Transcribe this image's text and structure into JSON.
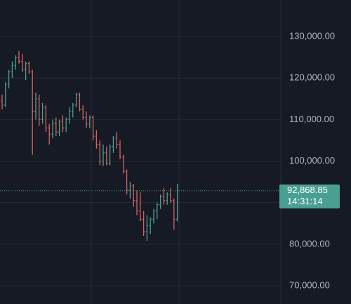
{
  "chart_data": {
    "type": "ohlc",
    "categories": [
      null,
      null,
      null,
      null,
      null,
      null,
      null,
      null,
      null,
      null,
      null,
      null,
      null,
      null,
      null,
      null,
      null,
      null,
      null,
      null,
      null,
      null,
      null,
      null,
      null,
      null,
      null,
      null,
      null,
      null,
      null,
      null,
      null,
      null,
      null,
      null,
      null,
      null,
      null,
      null,
      null,
      null,
      null,
      null,
      null,
      null,
      null,
      null,
      null,
      null,
      null,
      null,
      null
    ],
    "open": [
      114500,
      113500,
      118500,
      121500,
      123000,
      125000,
      124000,
      122000,
      123500,
      121500,
      112000,
      115000,
      110000,
      113000,
      108000,
      106500,
      109000,
      107000,
      109500,
      108000,
      110000,
      112000,
      113500,
      116000,
      112500,
      110500,
      109000,
      110500,
      106000,
      104000,
      100000,
      102000,
      99500,
      103500,
      105500,
      104000,
      101000,
      97500,
      93000,
      94000,
      90500,
      88000,
      86000,
      83000,
      84500,
      86000,
      88000,
      89500,
      91500,
      90500,
      92000,
      90500,
      86000
    ],
    "high": [
      116000,
      119000,
      122000,
      124000,
      125500,
      126500,
      125800,
      124000,
      124000,
      122000,
      116500,
      116000,
      114000,
      113500,
      109000,
      110000,
      110500,
      110000,
      111000,
      110500,
      113000,
      114000,
      116500,
      116500,
      113500,
      112000,
      111000,
      111000,
      107500,
      105000,
      104000,
      103500,
      104000,
      106000,
      107000,
      105000,
      101500,
      98000,
      95000,
      94500,
      93000,
      92500,
      88000,
      87000,
      86500,
      88500,
      90000,
      92000,
      93500,
      92500,
      93500,
      91000,
      94500
    ],
    "low": [
      112500,
      113000,
      117500,
      120000,
      122000,
      123500,
      121500,
      119500,
      121000,
      101500,
      110000,
      108500,
      109000,
      107000,
      104000,
      105500,
      106000,
      106000,
      107000,
      107000,
      109000,
      110500,
      113000,
      112000,
      110000,
      108000,
      108000,
      105000,
      103000,
      99000,
      98800,
      99000,
      99000,
      102000,
      103000,
      100500,
      97000,
      92000,
      91000,
      89000,
      87000,
      85500,
      82000,
      80800,
      82500,
      85000,
      86000,
      88500,
      89500,
      89500,
      90000,
      83500,
      85500
    ],
    "close": [
      113500,
      118500,
      121500,
      123000,
      125000,
      124000,
      122000,
      123500,
      121500,
      112000,
      115000,
      110000,
      113000,
      108000,
      106500,
      109000,
      107000,
      109500,
      108000,
      110000,
      112000,
      113500,
      116000,
      112500,
      110500,
      109000,
      110500,
      106000,
      104000,
      100000,
      102000,
      99500,
      103500,
      105500,
      104000,
      101000,
      97500,
      93000,
      94000,
      90500,
      88000,
      86000,
      83000,
      84500,
      86000,
      88000,
      89500,
      91500,
      90500,
      92000,
      90500,
      86000,
      92868.85
    ],
    "up_color": "#4a9f93",
    "down_color": "#d9625d",
    "ylim": [
      65600,
      138800
    ],
    "yticks": [
      {
        "value": 70000,
        "label": "70,000.00"
      },
      {
        "value": 80000,
        "label": "80,000.00"
      },
      {
        "value": 90000,
        "label": null
      },
      {
        "value": 100000,
        "label": "100,000.00"
      },
      {
        "value": 110000,
        "label": "110,000.00"
      },
      {
        "value": 120000,
        "label": "120,000.00"
      },
      {
        "value": 130000,
        "label": "130,000.00"
      }
    ],
    "grid": true,
    "last_price": {
      "value": 92868.85,
      "label": "92,868.85"
    },
    "countdown": "14:31:14"
  }
}
